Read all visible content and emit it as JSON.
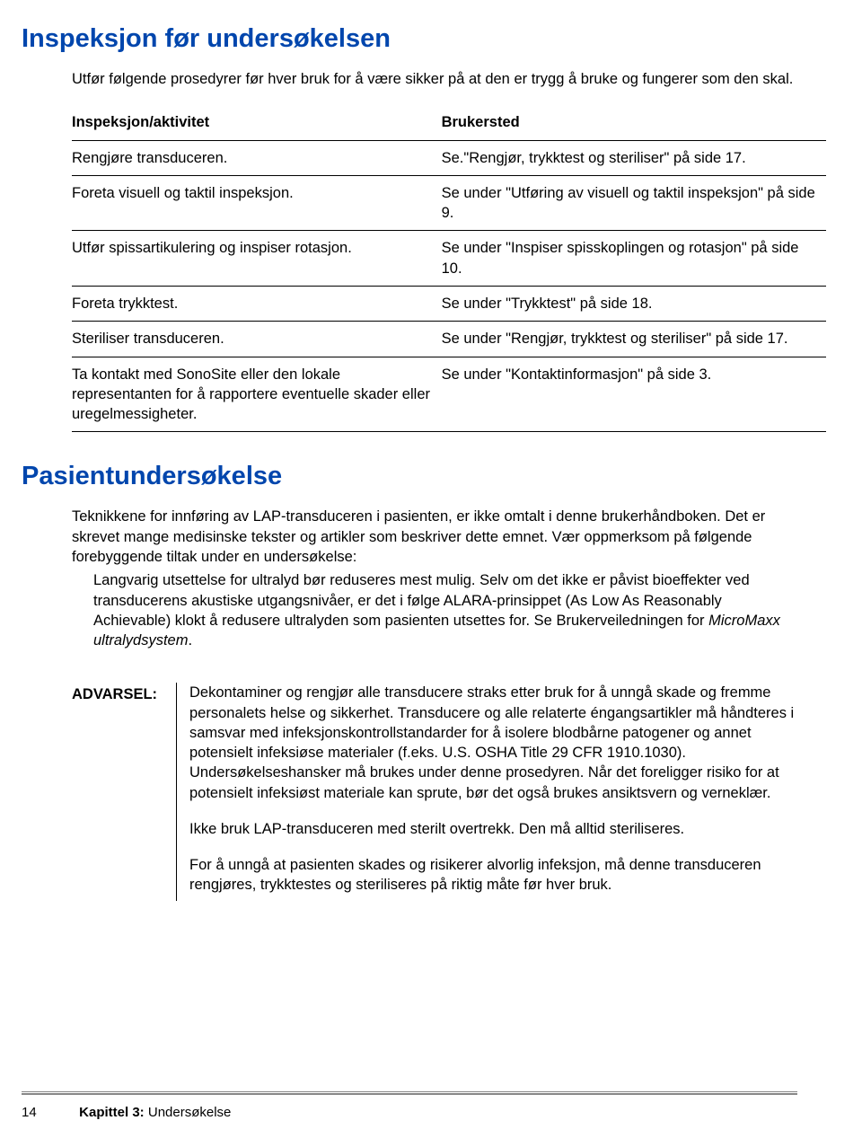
{
  "heading1": "Inspeksjon før undersøkelsen",
  "intro": "Utfør følgende prosedyrer før hver bruk for å være sikker på at den er trygg å bruke og fungerer som den skal.",
  "table": {
    "col1": "Inspeksjon/aktivitet",
    "col2": "Brukersted",
    "rows": [
      {
        "a": "Rengjøre transduceren.",
        "b": "Se.\"Rengjør, trykktest og steriliser\" på side 17."
      },
      {
        "a": "Foreta visuell og taktil inspeksjon.",
        "b": "Se under \"Utføring av visuell og taktil inspeksjon\" på side 9."
      },
      {
        "a": "Utfør spissartikulering og inspiser rotasjon.",
        "b": "Se under \"Inspiser spisskoplingen og rotasjon\" på side 10."
      },
      {
        "a": "Foreta trykktest.",
        "b": "Se under \"Trykktest\" på side 18."
      },
      {
        "a": "Steriliser transduceren.",
        "b": "Se under \"Rengjør, trykktest og steriliser\" på side 17."
      },
      {
        "a": "Ta kontakt med SonoSite eller den lokale representanten for å rapportere eventuelle skader eller uregelmessigheter.",
        "b": "Se under \"Kontaktinformasjon\" på side 3."
      }
    ]
  },
  "heading2": "Pasientundersøkelse",
  "para2": "Teknikkene for innføring av LAP-transduceren i pasienten, er ikke omtalt i denne brukerhåndboken. Det er skrevet mange medisinske tekster og artikler som beskriver dette emnet. Vær oppmerksom på følgende forebyggende tiltak under en undersøkelse:",
  "sub_a": "Langvarig utsettelse for ultralyd bør reduseres mest mulig. Selv om det ikke er påvist bioeffekter ved transducerens akustiske utgangsnivåer, er det i følge ALARA-prinsippet (As Low As Reasonably Achievable) klokt å redusere ultralyden som pasienten utsettes for. Se Brukerveiledningen for ",
  "sub_b_italic": "MicroMaxx ultralydsystem",
  "sub_c": ".",
  "warning_label": "ADVARSEL:",
  "warning_p1": "Dekontaminer og rengjør alle transducere straks etter bruk for å unngå skade og fremme personalets helse og sikkerhet. Transducere og alle relaterte éngangsartikler må håndteres i samsvar med infeksjonskontrollstandarder for å isolere blodbårne patogener og annet potensielt infeksiøse materialer (f.eks. U.S. OSHA Title 29 CFR 1910.1030). Undersøkelseshansker må brukes under denne prosedyren. Når det foreligger risiko for at potensielt infeksiøst materiale kan sprute, bør det også brukes ansiktsvern og verneklær.",
  "warning_p2": "Ikke bruk LAP-transduceren med sterilt overtrekk. Den må alltid steriliseres.",
  "warning_p3": "For å unngå at pasienten skades og risikerer alvorlig infeksjon, må denne transduceren rengjøres, trykktestes og steriliseres på riktig måte før hver bruk.",
  "footer": {
    "page": "14",
    "chapter_bold": "Kapittel 3:",
    "chapter_rest": " Undersøkelse"
  }
}
